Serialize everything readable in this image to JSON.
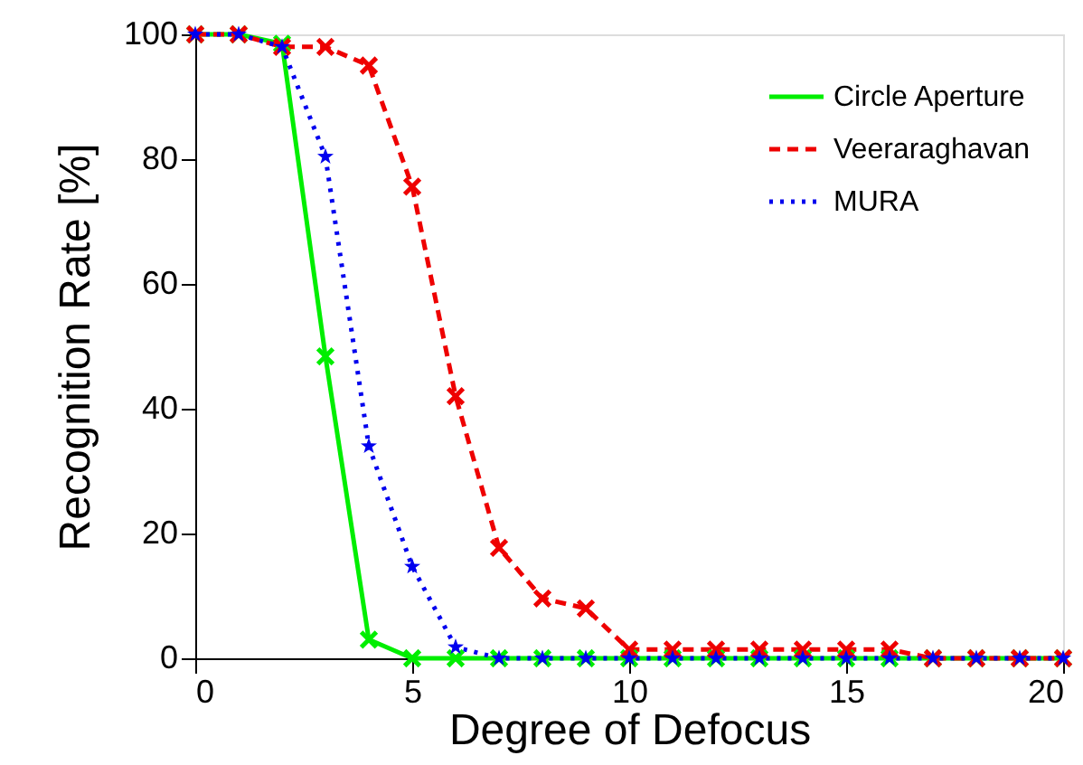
{
  "chart_data": {
    "type": "line",
    "xlabel": "Degree of Defocus",
    "ylabel": "Recognition Rate [%]",
    "x": [
      0,
      1,
      2,
      3,
      4,
      5,
      6,
      7,
      8,
      9,
      10,
      11,
      12,
      13,
      14,
      15,
      16,
      17,
      18,
      19,
      20
    ],
    "series": [
      {
        "name": "Circle Aperture",
        "color": "#00ee00",
        "line_style": "solid",
        "marker": "cross",
        "values": [
          100,
          100,
          98.5,
          48.4,
          3,
          0,
          0,
          0,
          0,
          0,
          0,
          0,
          0,
          0,
          0,
          0,
          0,
          0,
          0,
          0,
          0
        ]
      },
      {
        "name": "Veeraraghavan",
        "color": "#ee0000",
        "line_style": "dashed",
        "marker": "cross",
        "values": [
          100,
          100,
          98,
          98,
          95,
          75.6,
          42,
          17.7,
          9.6,
          8,
          1.4,
          1.4,
          1.4,
          1.4,
          1.4,
          1.4,
          1.4,
          0,
          0,
          0,
          0
        ]
      },
      {
        "name": "MURA",
        "color": "#0000ee",
        "line_style": "dotted",
        "marker": "star",
        "values": [
          100,
          100,
          98,
          80.4,
          34,
          14.7,
          1.8,
          0,
          0,
          0,
          0,
          0,
          0,
          0,
          0,
          0,
          0,
          0,
          0,
          0,
          0
        ]
      }
    ],
    "xlim": [
      0,
      20
    ],
    "xticks": [
      0,
      5,
      10,
      15,
      20
    ],
    "ylim": [
      0,
      100
    ],
    "yticks": [
      0,
      20,
      40,
      60,
      80,
      100
    ],
    "grid": false,
    "legend": "top right"
  }
}
